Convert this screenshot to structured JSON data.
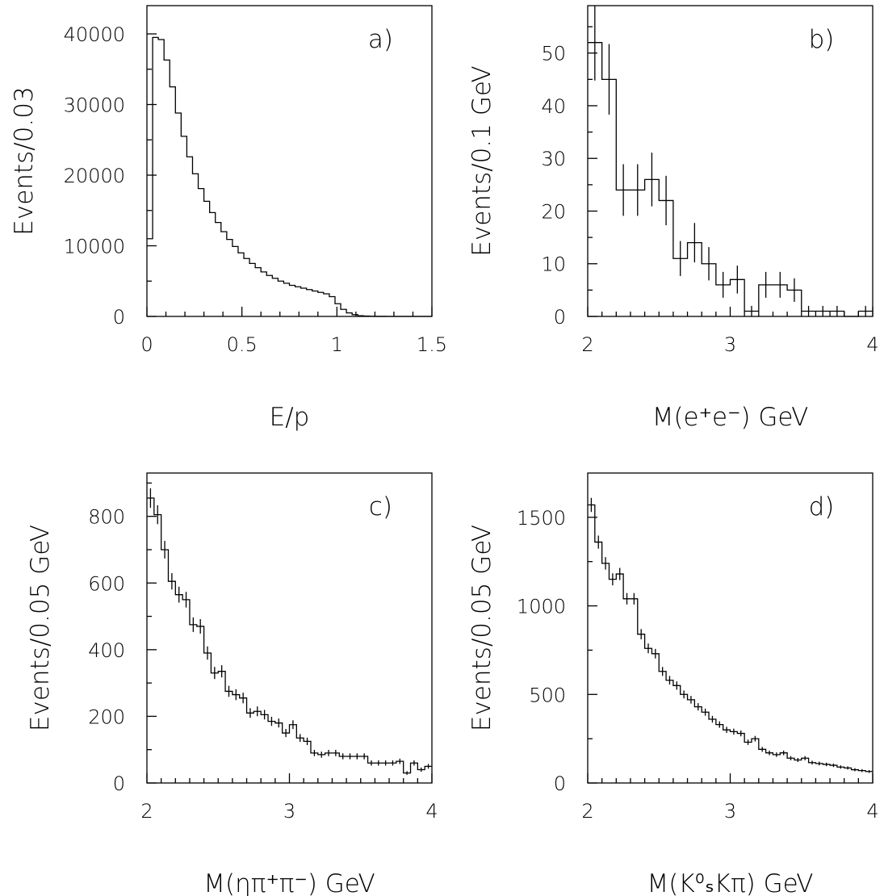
{
  "chart_data": [
    {
      "id": "a",
      "type": "bar",
      "histogram": true,
      "panel_label": "a)",
      "xlabel": "E/p",
      "ylabel": "Events/0.03",
      "xlim": [
        0,
        1.5
      ],
      "ylim": [
        0,
        44000
      ],
      "x_ticks": [
        0,
        0.5,
        1,
        1.5
      ],
      "x_tick_labels": [
        "0",
        "0.5",
        "1",
        "1.5"
      ],
      "y_ticks": [
        0,
        10000,
        20000,
        30000,
        40000
      ],
      "y_tick_labels": [
        "0",
        "10000",
        "20000",
        "30000",
        "40000"
      ],
      "bin_width": 0.03,
      "values": [
        11000,
        39500,
        39200,
        36300,
        32500,
        28800,
        25500,
        22600,
        20200,
        18100,
        16300,
        14700,
        13300,
        12000,
        10900,
        9900,
        9000,
        8200,
        7500,
        6900,
        6300,
        5800,
        5400,
        5000,
        4700,
        4400,
        4200,
        4000,
        3800,
        3600,
        3400,
        3200,
        2800,
        1800,
        1000,
        500,
        250,
        100,
        50,
        20,
        10,
        5,
        2,
        1,
        0,
        0,
        0,
        0,
        0,
        0
      ],
      "error_bars": false
    },
    {
      "id": "b",
      "type": "bar",
      "histogram": true,
      "panel_label": "b)",
      "xlabel": "M(e⁺e⁻)    GeV",
      "ylabel": "Events/0.1 GeV",
      "xlim": [
        2,
        4
      ],
      "ylim": [
        0,
        59
      ],
      "x_ticks": [
        2,
        3,
        4
      ],
      "x_tick_labels": [
        "2",
        "3",
        "4"
      ],
      "y_ticks": [
        0,
        10,
        20,
        30,
        40,
        50
      ],
      "y_tick_labels": [
        "0",
        "10",
        "20",
        "30",
        "40",
        "50"
      ],
      "bin_width": 0.1,
      "values": [
        52,
        45,
        24,
        24,
        26,
        22,
        11,
        14,
        10,
        6,
        7,
        1,
        6,
        6,
        5,
        1,
        1,
        1,
        0,
        1
      ],
      "error_bars": true
    },
    {
      "id": "c",
      "type": "bar",
      "histogram": true,
      "panel_label": "c)",
      "xlabel": "M(ηπ⁺π⁻)    GeV",
      "ylabel": "Events/0.05 GeV",
      "xlim": [
        2,
        4
      ],
      "ylim": [
        0,
        930
      ],
      "x_ticks": [
        2,
        3,
        4
      ],
      "x_tick_labels": [
        "2",
        "3",
        "4"
      ],
      "y_ticks": [
        0,
        200,
        400,
        600,
        800
      ],
      "y_tick_labels": [
        "0",
        "200",
        "400",
        "600",
        "800"
      ],
      "bin_width": 0.05,
      "values": [
        855,
        805,
        700,
        605,
        565,
        550,
        475,
        470,
        390,
        330,
        335,
        275,
        265,
        255,
        210,
        215,
        205,
        185,
        180,
        150,
        175,
        135,
        125,
        90,
        85,
        90,
        90,
        80,
        80,
        80,
        80,
        60,
        60,
        60,
        60,
        65,
        30,
        60,
        40,
        50
      ],
      "error_bars": true
    },
    {
      "id": "d",
      "type": "bar",
      "histogram": true,
      "panel_label": "d)",
      "xlabel": "M(K⁰ₛKπ)    GeV",
      "ylabel": "Events/0.05 GeV",
      "xlim": [
        2,
        4
      ],
      "ylim": [
        0,
        1750
      ],
      "x_ticks": [
        2,
        3,
        4
      ],
      "x_tick_labels": [
        "2",
        "3",
        "4"
      ],
      "y_ticks": [
        0,
        500,
        1000,
        1500
      ],
      "y_tick_labels": [
        "0",
        "500",
        "1000",
        "1500"
      ],
      "bin_width": 0.05,
      "values": [
        1570,
        1360,
        1240,
        1150,
        1180,
        1040,
        1040,
        840,
        760,
        730,
        630,
        580,
        550,
        500,
        470,
        430,
        400,
        360,
        330,
        300,
        290,
        280,
        230,
        250,
        190,
        170,
        160,
        170,
        140,
        130,
        140,
        115,
        110,
        105,
        100,
        90,
        85,
        75,
        70,
        65
      ],
      "error_bars": true
    }
  ]
}
